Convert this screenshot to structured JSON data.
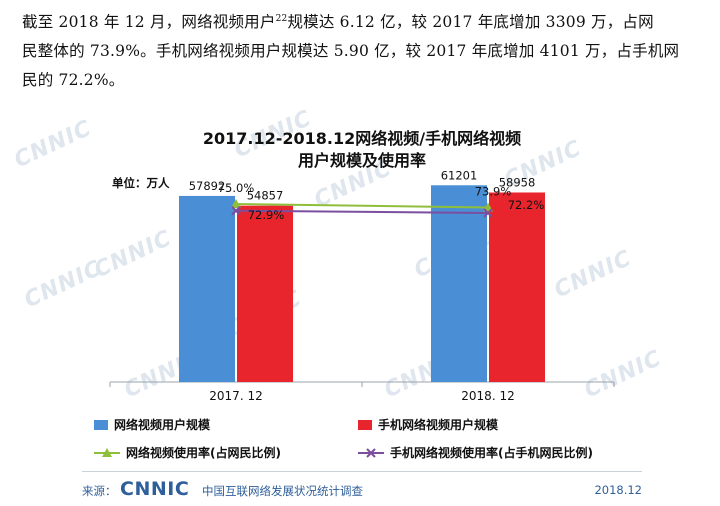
{
  "paragraph": {
    "line1_part1": "截至 2018 年 12 月，网络视频用户",
    "line1_sup": "22",
    "line1_part2": "规模达 6.12 亿，较 2017 年底增加 3309 万，占网",
    "line2": "民整体的 73.9%。手机网络视频用户规模达 5.90 亿，较 2017 年底增加 4101 万，占手机网",
    "line3": "民的 72.2%。"
  },
  "chart_data": {
    "type": "bar",
    "title_line1": "2017.12-2018.12网络视频/手机网络视频",
    "title_line2": "用户规模及使用率",
    "unit_label": "单位：万人",
    "categories": [
      "2017. 12",
      "2018. 12"
    ],
    "series": [
      {
        "name": "网络视频用户规模",
        "values": [
          57892,
          61201
        ],
        "labels": [
          "57892",
          "61201"
        ],
        "color": "#4a8fd6"
      },
      {
        "name": "手机网络视频用户规模",
        "values": [
          54857,
          58958
        ],
        "labels": [
          "54857",
          "58958"
        ],
        "color": "#e8242c"
      }
    ],
    "rate_series": [
      {
        "name": "网络视频使用率(占网民比例)",
        "values": [
          75.0,
          73.9
        ],
        "labels": [
          "75.0%",
          "73.9%"
        ],
        "color": "#8fbf3a",
        "marker": "triangle"
      },
      {
        "name": "手机网络视频使用率(占手机网民比例)",
        "values": [
          72.9,
          72.2
        ],
        "labels": [
          "72.9%",
          "72.2%"
        ],
        "color": "#7b4ea0",
        "marker": "x"
      }
    ],
    "ylim": [
      0,
      70000
    ],
    "grid": false,
    "legend_position": "bottom"
  },
  "watermark": {
    "text": "CNNIC"
  },
  "footer": {
    "source_label": "来源：",
    "logo_text": "CNNIC",
    "org": "中国互联网络发展状况统计调查",
    "date": "2018.12"
  }
}
